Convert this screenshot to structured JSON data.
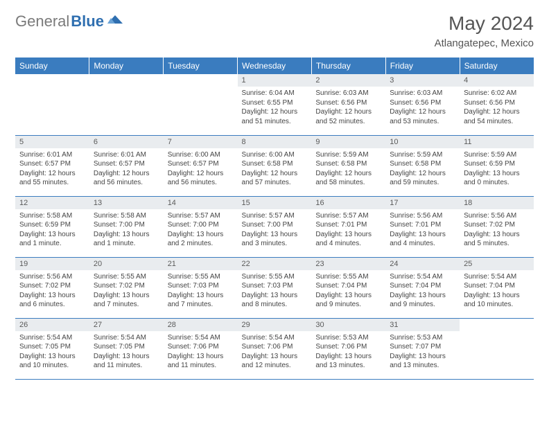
{
  "brand": {
    "gray": "General",
    "blue": "Blue"
  },
  "title": "May 2024",
  "location": "Atlangatepec, Mexico",
  "colors": {
    "header_bg": "#3a7cbf",
    "header_text": "#ffffff",
    "daynum_bg": "#e9ecef",
    "row_border": "#3a7cbf",
    "logo_gray": "#7a7a7a",
    "logo_blue": "#2f6fb0"
  },
  "weekdays": [
    "Sunday",
    "Monday",
    "Tuesday",
    "Wednesday",
    "Thursday",
    "Friday",
    "Saturday"
  ],
  "first_weekday_index": 3,
  "days": [
    {
      "n": "1",
      "sr": "6:04 AM",
      "ss": "6:55 PM",
      "dl": "12 hours and 51 minutes."
    },
    {
      "n": "2",
      "sr": "6:03 AM",
      "ss": "6:56 PM",
      "dl": "12 hours and 52 minutes."
    },
    {
      "n": "3",
      "sr": "6:03 AM",
      "ss": "6:56 PM",
      "dl": "12 hours and 53 minutes."
    },
    {
      "n": "4",
      "sr": "6:02 AM",
      "ss": "6:56 PM",
      "dl": "12 hours and 54 minutes."
    },
    {
      "n": "5",
      "sr": "6:01 AM",
      "ss": "6:57 PM",
      "dl": "12 hours and 55 minutes."
    },
    {
      "n": "6",
      "sr": "6:01 AM",
      "ss": "6:57 PM",
      "dl": "12 hours and 56 minutes."
    },
    {
      "n": "7",
      "sr": "6:00 AM",
      "ss": "6:57 PM",
      "dl": "12 hours and 56 minutes."
    },
    {
      "n": "8",
      "sr": "6:00 AM",
      "ss": "6:58 PM",
      "dl": "12 hours and 57 minutes."
    },
    {
      "n": "9",
      "sr": "5:59 AM",
      "ss": "6:58 PM",
      "dl": "12 hours and 58 minutes."
    },
    {
      "n": "10",
      "sr": "5:59 AM",
      "ss": "6:58 PM",
      "dl": "12 hours and 59 minutes."
    },
    {
      "n": "11",
      "sr": "5:59 AM",
      "ss": "6:59 PM",
      "dl": "13 hours and 0 minutes."
    },
    {
      "n": "12",
      "sr": "5:58 AM",
      "ss": "6:59 PM",
      "dl": "13 hours and 1 minute."
    },
    {
      "n": "13",
      "sr": "5:58 AM",
      "ss": "7:00 PM",
      "dl": "13 hours and 1 minute."
    },
    {
      "n": "14",
      "sr": "5:57 AM",
      "ss": "7:00 PM",
      "dl": "13 hours and 2 minutes."
    },
    {
      "n": "15",
      "sr": "5:57 AM",
      "ss": "7:00 PM",
      "dl": "13 hours and 3 minutes."
    },
    {
      "n": "16",
      "sr": "5:57 AM",
      "ss": "7:01 PM",
      "dl": "13 hours and 4 minutes."
    },
    {
      "n": "17",
      "sr": "5:56 AM",
      "ss": "7:01 PM",
      "dl": "13 hours and 4 minutes."
    },
    {
      "n": "18",
      "sr": "5:56 AM",
      "ss": "7:02 PM",
      "dl": "13 hours and 5 minutes."
    },
    {
      "n": "19",
      "sr": "5:56 AM",
      "ss": "7:02 PM",
      "dl": "13 hours and 6 minutes."
    },
    {
      "n": "20",
      "sr": "5:55 AM",
      "ss": "7:02 PM",
      "dl": "13 hours and 7 minutes."
    },
    {
      "n": "21",
      "sr": "5:55 AM",
      "ss": "7:03 PM",
      "dl": "13 hours and 7 minutes."
    },
    {
      "n": "22",
      "sr": "5:55 AM",
      "ss": "7:03 PM",
      "dl": "13 hours and 8 minutes."
    },
    {
      "n": "23",
      "sr": "5:55 AM",
      "ss": "7:04 PM",
      "dl": "13 hours and 9 minutes."
    },
    {
      "n": "24",
      "sr": "5:54 AM",
      "ss": "7:04 PM",
      "dl": "13 hours and 9 minutes."
    },
    {
      "n": "25",
      "sr": "5:54 AM",
      "ss": "7:04 PM",
      "dl": "13 hours and 10 minutes."
    },
    {
      "n": "26",
      "sr": "5:54 AM",
      "ss": "7:05 PM",
      "dl": "13 hours and 10 minutes."
    },
    {
      "n": "27",
      "sr": "5:54 AM",
      "ss": "7:05 PM",
      "dl": "13 hours and 11 minutes."
    },
    {
      "n": "28",
      "sr": "5:54 AM",
      "ss": "7:06 PM",
      "dl": "13 hours and 11 minutes."
    },
    {
      "n": "29",
      "sr": "5:54 AM",
      "ss": "7:06 PM",
      "dl": "13 hours and 12 minutes."
    },
    {
      "n": "30",
      "sr": "5:53 AM",
      "ss": "7:06 PM",
      "dl": "13 hours and 13 minutes."
    },
    {
      "n": "31",
      "sr": "5:53 AM",
      "ss": "7:07 PM",
      "dl": "13 hours and 13 minutes."
    }
  ],
  "labels": {
    "sunrise": "Sunrise:",
    "sunset": "Sunset:",
    "daylight": "Daylight:"
  }
}
